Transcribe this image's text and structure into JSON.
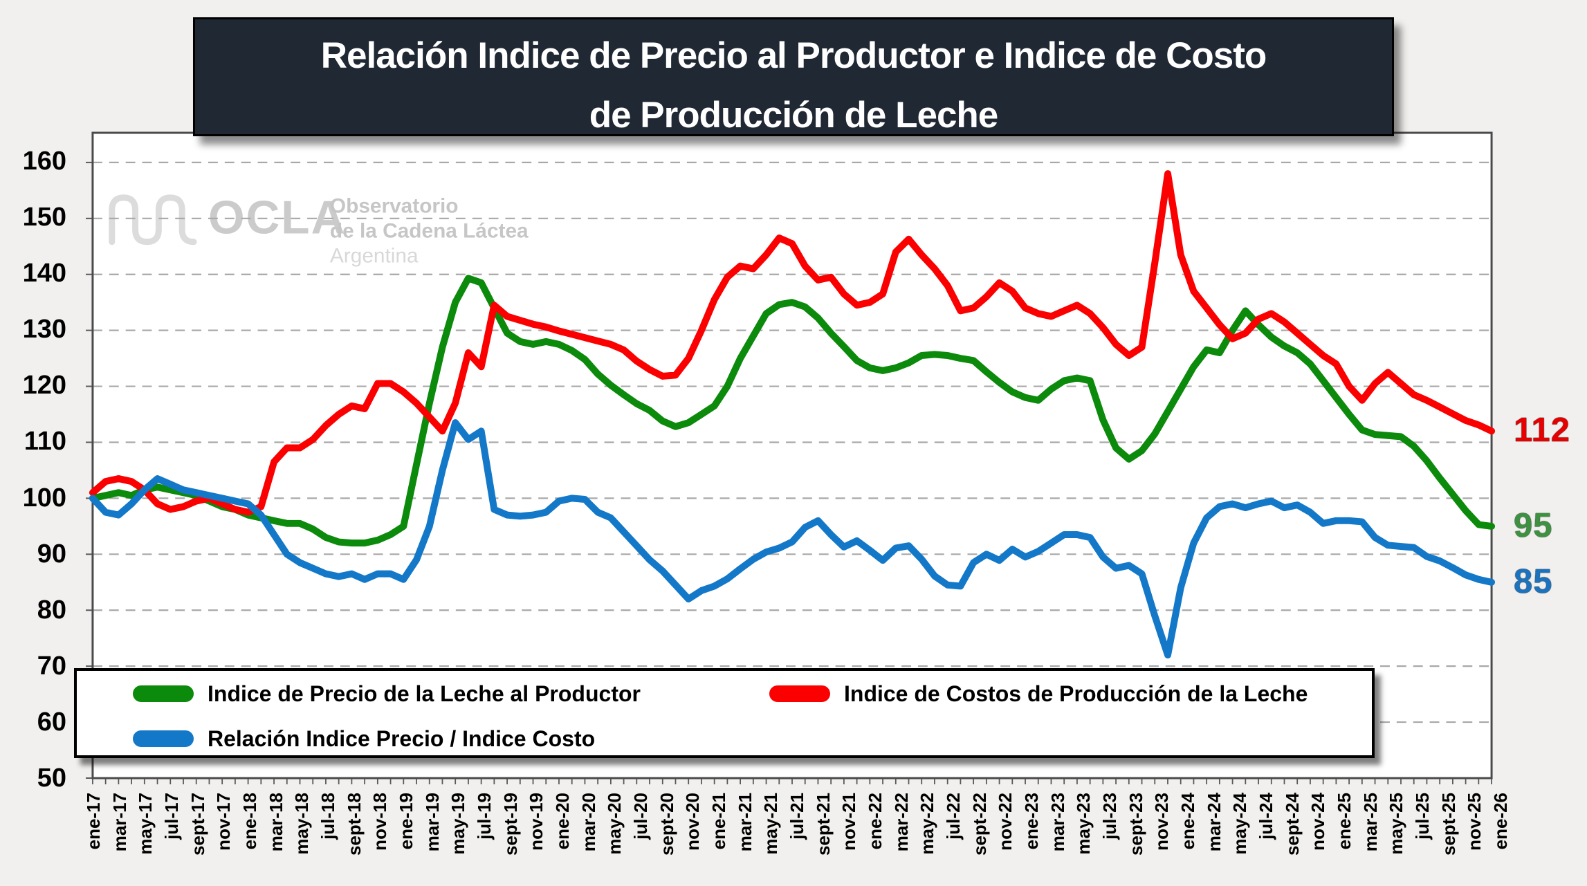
{
  "title": {
    "line1": "Relación Indice de Precio al Productor e Indice de Costo",
    "line2": "de Producción de Leche"
  },
  "watermark": {
    "brand": "OCLA",
    "sub1": "Observatorio",
    "sub2": "de la Cadena Láctea",
    "sub3": "Argentina"
  },
  "axis": {
    "y_ticks": [
      160,
      150,
      140,
      130,
      120,
      110,
      100,
      90,
      80,
      70,
      60,
      50
    ],
    "x_labels": [
      "ene-17",
      "mar-17",
      "may-17",
      "jul-17",
      "sept-17",
      "nov-17",
      "ene-18",
      "mar-18",
      "may-18",
      "jul-18",
      "sept-18",
      "nov-18",
      "ene-19",
      "mar-19",
      "may-19",
      "jul-19",
      "sept-19",
      "nov-19",
      "ene-20",
      "mar-20",
      "may-20",
      "jul-20",
      "sept-20",
      "nov-20",
      "ene-21",
      "mar-21",
      "may-21",
      "jul-21",
      "sept-21",
      "nov-21",
      "ene-22",
      "mar-22",
      "may-22",
      "jul-22",
      "sept-22",
      "nov-22",
      "ene-23",
      "mar-23",
      "may-23",
      "jul-23",
      "sept-23",
      "nov-23",
      "ene-24",
      "mar-24",
      "may-24",
      "jul-24",
      "sept-24",
      "nov-24",
      "ene-25",
      "mar-25",
      "may-25",
      "jul-25",
      "sept-25",
      "nov-25",
      "ene-26"
    ]
  },
  "legend": {
    "items": [
      {
        "label": "Indice de Precio de la Leche al Productor",
        "color": "#0B8A0B"
      },
      {
        "label": "Indice de Costos de Producción de la Leche",
        "color": "#FB0000"
      },
      {
        "label": "Relación Indice Precio / Indice Costo",
        "color": "#1478C8"
      }
    ]
  },
  "end_labels": [
    {
      "value": "112",
      "numeric": 112,
      "color": "#E60000"
    },
    {
      "value": "95",
      "numeric": 95,
      "color": "#3D9140"
    },
    {
      "value": "85",
      "numeric": 85,
      "color": "#1B72BE"
    }
  ],
  "colors": {
    "page_bg": "#F1F0EE",
    "plot_bg": "#FFFFFF",
    "title_bg": "#202834",
    "gridline": "#A8A8A8",
    "axis_border": "#4A4A4A",
    "watermark_gray": "#C9C9C9"
  },
  "chart_data": {
    "type": "line",
    "title": "Relación Indice de Precio al Productor e Indice de Costo de Producción de Leche",
    "x_interval": "monthly",
    "x_start": "ene-17",
    "x_end": "ene-26",
    "n_points": 109,
    "ylim": [
      50,
      160
    ],
    "grid": "dashed horizontal every 10",
    "legend_position": "bottom-left inside plot",
    "categories_shown": [
      "ene-17",
      "mar-17",
      "may-17",
      "jul-17",
      "sept-17",
      "nov-17",
      "ene-18",
      "mar-18",
      "may-18",
      "jul-18",
      "sept-18",
      "nov-18",
      "ene-19",
      "mar-19",
      "may-19",
      "jul-19",
      "sept-19",
      "nov-19",
      "ene-20",
      "mar-20",
      "may-20",
      "jul-20",
      "sept-20",
      "nov-20",
      "ene-21",
      "mar-21",
      "may-21",
      "jul-21",
      "sept-21",
      "nov-21",
      "ene-22",
      "mar-22",
      "may-22",
      "jul-22",
      "sept-22",
      "nov-22",
      "ene-23",
      "mar-23",
      "may-23",
      "jul-23",
      "sept-23",
      "nov-23",
      "ene-24",
      "mar-24",
      "may-24",
      "jul-24",
      "sept-24",
      "nov-24",
      "ene-25",
      "mar-25",
      "may-25",
      "jul-25",
      "sept-25",
      "nov-25",
      "ene-26"
    ],
    "series": [
      {
        "name": "Indice de Precio de la Leche al Productor",
        "color": "#0B8A0B",
        "values": [
          100,
          100.5,
          101,
          100.5,
          101.5,
          102,
          101.5,
          101,
          100.5,
          99.5,
          98.5,
          98,
          97,
          96.5,
          96,
          95.5,
          95.5,
          94.5,
          93,
          92.2,
          92,
          92,
          92.5,
          93.5,
          95,
          106,
          117,
          127,
          135,
          139.3,
          138.5,
          134,
          129.5,
          128,
          127.5,
          128,
          127.5,
          126.4,
          124.8,
          122.2,
          120.2,
          118.5,
          116.9,
          115.7,
          113.8,
          112.8,
          113.5,
          115,
          116.5,
          120,
          125,
          129,
          133,
          134.6,
          135,
          134.2,
          132.2,
          129.5,
          127.1,
          124.6,
          123.3,
          122.8,
          123.3,
          124.2,
          125.5,
          125.7,
          125.5,
          125,
          124.6,
          122.6,
          120.7,
          119,
          118,
          117.5,
          119.5,
          121,
          121.5,
          121,
          114,
          109,
          107,
          108.5,
          111.5,
          115.5,
          119.5,
          123.5,
          126.5,
          126,
          130,
          133.5,
          131,
          128.8,
          127.2,
          126,
          124,
          121,
          118,
          115,
          112.2,
          111.4,
          111.2,
          111,
          109.3,
          106.7,
          103.6,
          100.7,
          97.8,
          95.3,
          95
        ]
      },
      {
        "name": "Indice de Costos de Producción de la Leche",
        "color": "#FB0000",
        "values": [
          101,
          103,
          103.5,
          103,
          101.5,
          99,
          98,
          98.5,
          99.5,
          100,
          99,
          98,
          97.5,
          98.5,
          106.5,
          109,
          109,
          110.5,
          113,
          115,
          116.5,
          116,
          120.5,
          120.5,
          119,
          117,
          114.5,
          112,
          117,
          126,
          123.5,
          134.5,
          132.5,
          131.8,
          131.1,
          130.6,
          129.9,
          129.3,
          128.7,
          128.1,
          127.5,
          126.5,
          124.5,
          123,
          121.8,
          122,
          125,
          130,
          135.5,
          139.5,
          141.5,
          141,
          143.5,
          146.5,
          145.5,
          141.5,
          139,
          139.5,
          136.5,
          134.5,
          135,
          136.5,
          144,
          146.3,
          143.5,
          141,
          138,
          133.5,
          134,
          136,
          138.5,
          137,
          134,
          133,
          132.5,
          133.5,
          134.5,
          133,
          130.5,
          127.5,
          125.5,
          127,
          142,
          158,
          143.5,
          137,
          134,
          131,
          128.5,
          129.5,
          132,
          133,
          131.5,
          129.5,
          127.5,
          125.5,
          124,
          120,
          117.5,
          120.5,
          122.5,
          120.5,
          118.5,
          117.5,
          116.3,
          115.1,
          113.9,
          113.1,
          112
        ]
      },
      {
        "name": "Relación Indice Precio / Indice Costo",
        "color": "#1478C8",
        "values": [
          100,
          97.5,
          97,
          99,
          101.5,
          103.5,
          102.5,
          101.5,
          101,
          100.5,
          100,
          99.5,
          99,
          97,
          93.5,
          90,
          88.5,
          87.5,
          86.5,
          86,
          86.5,
          85.5,
          86.5,
          86.5,
          85.5,
          89,
          95,
          105,
          113.5,
          110.5,
          112,
          98,
          97,
          96.8,
          97,
          97.5,
          99.5,
          100,
          99.8,
          97.5,
          96.5,
          94,
          91.5,
          89,
          87,
          84.5,
          82,
          83.5,
          84.3,
          85.6,
          87.4,
          89.1,
          90.4,
          91.1,
          92.2,
          94.8,
          96,
          93.5,
          91.3,
          92.4,
          90.7,
          88.9,
          91.1,
          91.5,
          89.1,
          86.1,
          84.5,
          84.3,
          88.5,
          90,
          88.9,
          90.9,
          89.5,
          90.5,
          92,
          93.5,
          93.5,
          93,
          89.5,
          87.5,
          88,
          86.5,
          79,
          72,
          84,
          92,
          96.5,
          98.5,
          99,
          98.3,
          99,
          99.5,
          98.3,
          98.8,
          97.5,
          95.5,
          96,
          96,
          95.8,
          93,
          91.6,
          91.4,
          91.2,
          89.6,
          88.8,
          87.6,
          86.3,
          85.5,
          85
        ]
      }
    ]
  }
}
